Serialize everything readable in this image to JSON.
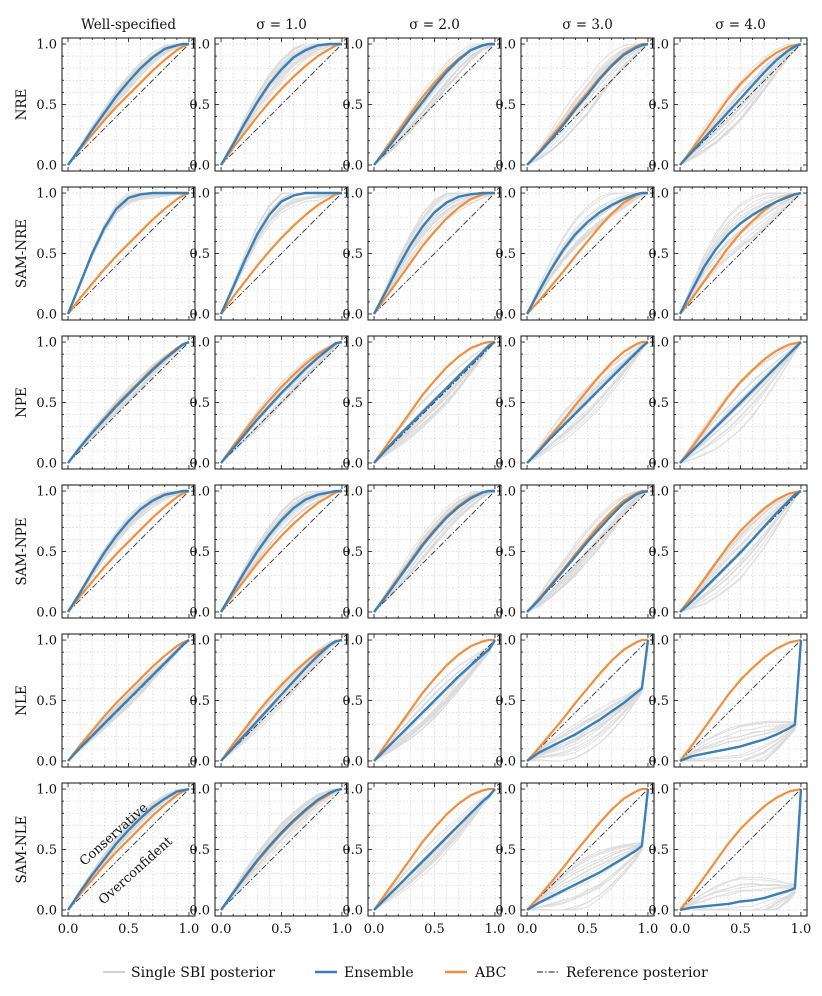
{
  "chart_data": {
    "type": "line",
    "description_free": true,
    "axis_range": {
      "x": [
        0,
        1
      ],
      "y": [
        0,
        1
      ]
    },
    "x_ticks": [
      "0.0",
      "0.5",
      "1.0"
    ],
    "y_ticks": [
      "0.0",
      "0.5",
      "1.0"
    ],
    "column_titles": [
      "Well-specified",
      "σ = 1.0",
      "σ = 2.0",
      "σ = 3.0",
      "σ = 4.0"
    ],
    "row_labels": [
      "NRE",
      "SAM-NRE",
      "NPE",
      "SAM-NPE",
      "NLE",
      "SAM-NLE"
    ],
    "annotations": {
      "upper": "Conservative",
      "lower": "Overconfident"
    },
    "legend": {
      "single": "Single SBI posterior",
      "ensemble": "Ensemble",
      "abc": "ABC",
      "reference": "Reference posterior"
    },
    "colors": {
      "single": "#d9d9d9",
      "ensemble": "#3a7fb6",
      "abc": "#f28e3c",
      "reference": "#444444"
    },
    "x": [
      0,
      0.1,
      0.2,
      0.3,
      0.4,
      0.5,
      0.6,
      0.7,
      0.8,
      0.9,
      0.95,
      1.0
    ],
    "abc": {
      "Well-specified": [
        0,
        0.13,
        0.25,
        0.37,
        0.48,
        0.58,
        0.68,
        0.78,
        0.87,
        0.95,
        0.98,
        1.0
      ],
      "σ = 1.0": [
        0,
        0.14,
        0.27,
        0.4,
        0.52,
        0.63,
        0.73,
        0.82,
        0.9,
        0.96,
        0.99,
        1.0
      ],
      "σ = 2.0": [
        0,
        0.14,
        0.28,
        0.42,
        0.56,
        0.68,
        0.79,
        0.88,
        0.95,
        0.99,
        1.0,
        1.0
      ],
      "σ = 3.0": [
        0,
        0.11,
        0.23,
        0.35,
        0.48,
        0.6,
        0.72,
        0.83,
        0.92,
        0.98,
        1.0,
        1.0
      ],
      "σ = 4.0": [
        0,
        0.13,
        0.27,
        0.41,
        0.55,
        0.67,
        0.77,
        0.86,
        0.93,
        0.98,
        0.99,
        1.0
      ]
    },
    "ensemble": {
      "NRE": {
        "Well-specified": [
          0,
          0.14,
          0.29,
          0.43,
          0.57,
          0.69,
          0.8,
          0.89,
          0.96,
          0.99,
          1.0,
          1.0
        ],
        "σ = 1.0": [
          0,
          0.17,
          0.35,
          0.52,
          0.67,
          0.79,
          0.89,
          0.95,
          0.99,
          1.0,
          1.0,
          1.0
        ],
        "σ = 2.0": [
          0,
          0.12,
          0.25,
          0.39,
          0.52,
          0.65,
          0.77,
          0.87,
          0.95,
          0.99,
          1.0,
          1.0
        ],
        "σ = 3.0": [
          0,
          0.1,
          0.21,
          0.33,
          0.46,
          0.58,
          0.71,
          0.82,
          0.91,
          0.97,
          0.99,
          1.0
        ],
        "σ = 4.0": [
          0,
          0.11,
          0.22,
          0.33,
          0.44,
          0.55,
          0.66,
          0.77,
          0.87,
          0.95,
          0.98,
          1.0
        ]
      },
      "SAM-NRE": {
        "Well-specified": [
          0,
          0.25,
          0.5,
          0.71,
          0.87,
          0.96,
          0.99,
          1.0,
          1.0,
          1.0,
          1.0,
          1.0
        ],
        "σ = 1.0": [
          0,
          0.22,
          0.45,
          0.66,
          0.82,
          0.93,
          0.98,
          1.0,
          1.0,
          1.0,
          1.0,
          1.0
        ],
        "σ = 2.0": [
          0,
          0.19,
          0.39,
          0.57,
          0.72,
          0.84,
          0.92,
          0.97,
          0.99,
          1.0,
          1.0,
          1.0
        ],
        "σ = 3.0": [
          0,
          0.19,
          0.37,
          0.53,
          0.66,
          0.76,
          0.84,
          0.9,
          0.95,
          0.99,
          1.0,
          1.0
        ],
        "σ = 4.0": [
          0,
          0.2,
          0.39,
          0.54,
          0.66,
          0.75,
          0.82,
          0.88,
          0.93,
          0.97,
          0.99,
          1.0
        ]
      },
      "NPE": {
        "Well-specified": [
          0,
          0.13,
          0.25,
          0.36,
          0.47,
          0.57,
          0.67,
          0.77,
          0.86,
          0.94,
          0.98,
          1.0
        ],
        "σ = 1.0": [
          0,
          0.12,
          0.24,
          0.36,
          0.47,
          0.58,
          0.68,
          0.78,
          0.87,
          0.95,
          0.99,
          1.0
        ],
        "σ = 2.0": [
          0,
          0.11,
          0.22,
          0.32,
          0.42,
          0.52,
          0.62,
          0.72,
          0.82,
          0.92,
          0.97,
          1.0
        ],
        "σ = 3.0": [
          0,
          0.1,
          0.21,
          0.31,
          0.41,
          0.51,
          0.61,
          0.71,
          0.81,
          0.91,
          0.96,
          1.0
        ],
        "σ = 4.0": [
          0,
          0.1,
          0.2,
          0.3,
          0.4,
          0.5,
          0.6,
          0.7,
          0.8,
          0.9,
          0.95,
          1.0
        ]
      },
      "SAM-NPE": {
        "Well-specified": [
          0,
          0.16,
          0.33,
          0.49,
          0.63,
          0.75,
          0.85,
          0.92,
          0.97,
          0.99,
          1.0,
          1.0
        ],
        "σ = 1.0": [
          0,
          0.17,
          0.34,
          0.5,
          0.64,
          0.76,
          0.86,
          0.93,
          0.97,
          0.99,
          1.0,
          1.0
        ],
        "σ = 2.0": [
          0,
          0.13,
          0.27,
          0.41,
          0.55,
          0.67,
          0.78,
          0.87,
          0.94,
          0.99,
          1.0,
          1.0
        ],
        "σ = 3.0": [
          0,
          0.1,
          0.22,
          0.34,
          0.46,
          0.58,
          0.69,
          0.8,
          0.9,
          0.97,
          0.99,
          1.0
        ],
        "σ = 4.0": [
          0,
          0.09,
          0.19,
          0.29,
          0.39,
          0.49,
          0.6,
          0.71,
          0.82,
          0.92,
          0.97,
          1.0
        ]
      },
      "NLE": {
        "Well-specified": [
          0,
          0.11,
          0.21,
          0.31,
          0.41,
          0.51,
          0.61,
          0.71,
          0.81,
          0.91,
          0.96,
          1.0
        ],
        "σ = 1.0": [
          0,
          0.11,
          0.22,
          0.33,
          0.44,
          0.55,
          0.66,
          0.77,
          0.87,
          0.96,
          0.99,
          1.0
        ],
        "σ = 2.0": [
          0,
          0.1,
          0.2,
          0.3,
          0.4,
          0.5,
          0.6,
          0.7,
          0.79,
          0.88,
          0.92,
          1.0
        ],
        "σ = 3.0": [
          0,
          0.07,
          0.12,
          0.17,
          0.22,
          0.28,
          0.34,
          0.41,
          0.48,
          0.56,
          0.6,
          1.0
        ],
        "σ = 4.0": [
          0,
          0.04,
          0.06,
          0.08,
          0.1,
          0.12,
          0.15,
          0.18,
          0.22,
          0.27,
          0.3,
          1.0
        ]
      },
      "SAM-NLE": {
        "Well-specified": [
          0,
          0.15,
          0.29,
          0.42,
          0.55,
          0.66,
          0.76,
          0.85,
          0.92,
          0.98,
          0.99,
          1.0
        ],
        "σ = 1.0": [
          0,
          0.14,
          0.28,
          0.41,
          0.53,
          0.64,
          0.74,
          0.83,
          0.91,
          0.97,
          0.99,
          1.0
        ],
        "σ = 2.0": [
          0,
          0.1,
          0.2,
          0.3,
          0.4,
          0.5,
          0.6,
          0.7,
          0.8,
          0.9,
          0.94,
          1.0
        ],
        "σ = 3.0": [
          0,
          0.06,
          0.11,
          0.16,
          0.21,
          0.26,
          0.31,
          0.37,
          0.43,
          0.49,
          0.53,
          1.0
        ],
        "σ = 4.0": [
          0,
          0.02,
          0.03,
          0.04,
          0.05,
          0.07,
          0.08,
          0.1,
          0.13,
          0.16,
          0.18,
          1.0
        ]
      }
    }
  }
}
